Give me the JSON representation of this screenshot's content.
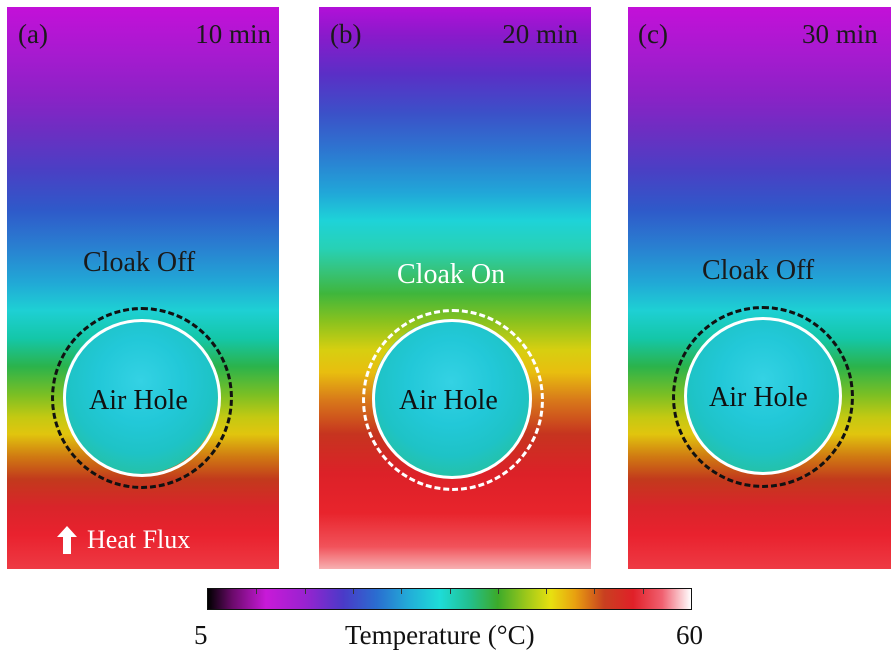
{
  "panels": [
    {
      "label": "(a)",
      "time": "10 min",
      "cloak": "Cloak Off",
      "hole": "Air Hole",
      "cloak_state": "off"
    },
    {
      "label": "(b)",
      "time": "20 min",
      "cloak": "Cloak On",
      "hole": "Air Hole",
      "cloak_state": "on"
    },
    {
      "label": "(c)",
      "time": "30 min",
      "cloak": "Cloak Off",
      "hole": "Air Hole",
      "cloak_state": "off"
    }
  ],
  "heat_flux_label": "Heat Flux",
  "colorbar": {
    "min": "5",
    "max": "60",
    "title": "Temperature (°C)"
  },
  "colors": {
    "cloak_off_text": "#1a1a1a",
    "cloak_on_text": "#ffffff",
    "ring": "#ffffff",
    "dashed_ring_off": "#111111",
    "dashed_ring_on": "#ffffff"
  }
}
